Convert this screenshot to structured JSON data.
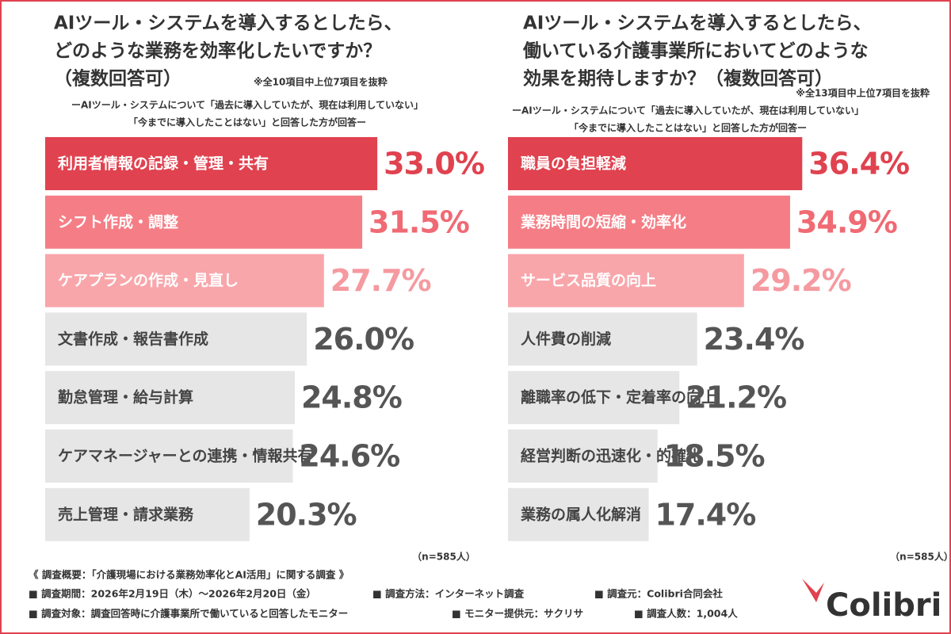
{
  "chart_data": [
    {
      "type": "bar",
      "orientation": "horizontal",
      "title": [
        "AIツール・システムを導入するとしたら、",
        "どのような業務を効率化したいですか？",
        "（複数回答可）"
      ],
      "note": "※全10項目中上位7項目を抜粋",
      "subtitle": [
        "ーAIツール・システムについて「過去に導入していたが、現在は利用していない」",
        "「今までに導入したことはない」と回答した方が回答ー"
      ],
      "categories": [
        "利用者情報の記録・管理・共有",
        "シフト作成・調整",
        "ケアプランの作成・見直し",
        "文書作成・報告書作成",
        "勤怠管理・給与計算",
        "ケアマネージャーとの連携・情報共有",
        "売上管理・請求業務"
      ],
      "values": [
        33.0,
        31.5,
        27.7,
        26.0,
        24.8,
        24.6,
        20.3
      ],
      "value_labels": [
        "33.0%",
        "31.5%",
        "27.7%",
        "26.0%",
        "24.8%",
        "24.6%",
        "20.3%"
      ],
      "colors": [
        "#e0424f",
        "#f57e86",
        "#f9a6ab",
        "#e6e6e6",
        "#e6e6e6",
        "#e6e6e6",
        "#e6e6e6"
      ],
      "value_label_colors": [
        "#e0424f",
        "#f06a74",
        "#f59aa0",
        "#555555",
        "#555555",
        "#555555",
        "#555555"
      ],
      "sample": "（n=585人）"
    },
    {
      "type": "bar",
      "orientation": "horizontal",
      "title": [
        "AIツール・システムを導入するとしたら、",
        "働いている介護事業所においてどのような",
        "効果を期待しますか？（複数回答可）"
      ],
      "note": "※全13項目中上位7項目を抜粋",
      "subtitle": [
        "ーAIツール・システムについて「過去に導入していたが、現在は利用していない」",
        "「今までに導入したことはない」と回答した方が回答ー"
      ],
      "categories": [
        "職員の負担軽減",
        "業務時間の短縮・効率化",
        "サービス品質の向上",
        "人件費の削減",
        "離職率の低下・定着率の向上",
        "経営判断の迅速化・的確化",
        "業務の属人化解消"
      ],
      "values": [
        36.4,
        34.9,
        29.2,
        23.4,
        21.2,
        18.5,
        17.4
      ],
      "value_labels": [
        "36.4%",
        "34.9%",
        "29.2%",
        "23.4%",
        "21.2%",
        "18.5%",
        "17.4%"
      ],
      "colors": [
        "#e0424f",
        "#f57e86",
        "#f9a6ab",
        "#e6e6e6",
        "#e6e6e6",
        "#e6e6e6",
        "#e6e6e6"
      ],
      "value_label_colors": [
        "#e0424f",
        "#f06a74",
        "#f59aa0",
        "#555555",
        "#555555",
        "#555555",
        "#555555"
      ],
      "sample": "（n=585人）"
    }
  ],
  "footer": {
    "heading": "《 調査概要：「介護現場における業務効率化とAI活用」に関する調査 》",
    "items": [
      "■ 調査期間：2026年2月19日（木）～2026年2月20日（金）",
      "■ 調査方法：インターネット調査",
      "■ 調査元：Colibri合同会社",
      "■ 調査対象：調査回答時に介護事業所で働いていると回答したモニター",
      "■ モニター提供元：サクリサ",
      "■ 調査人数：1,004人"
    ]
  },
  "logo": "Colibri"
}
